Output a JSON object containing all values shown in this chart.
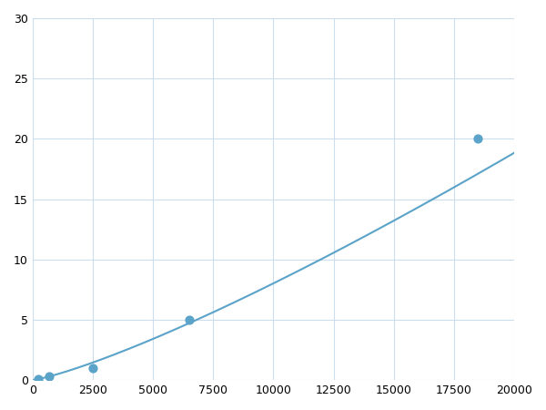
{
  "x_points": [
    250,
    700,
    2500,
    6500,
    18500
  ],
  "y_points": [
    0.1,
    0.3,
    1.0,
    5.0,
    20.0
  ],
  "line_color": "#5ba3c9",
  "marker_color": "#5ba3c9",
  "marker_size": 6,
  "line_width": 1.5,
  "xlim": [
    0,
    20000
  ],
  "ylim": [
    0,
    30
  ],
  "xticks": [
    0,
    2500,
    5000,
    7500,
    10000,
    12500,
    15000,
    17500,
    20000
  ],
  "yticks": [
    0,
    5,
    10,
    15,
    20,
    25,
    30
  ],
  "grid_color": "#ccddee",
  "background_color": "#ffffff",
  "title": ""
}
